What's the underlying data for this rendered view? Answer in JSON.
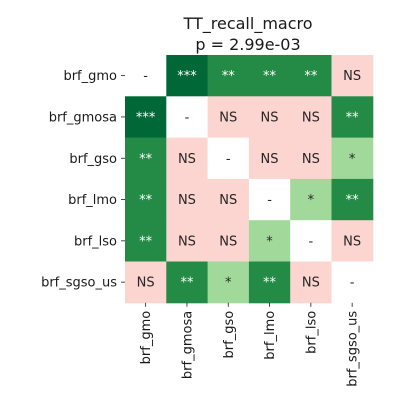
{
  "chart_data": {
    "type": "heatmap",
    "title": "TT_recall_macro",
    "subtitle": "p = 2.99e-03",
    "rows": [
      "brf_gmo",
      "brf_gmosa",
      "brf_gso",
      "brf_lmo",
      "brf_lso",
      "brf_sgso_us"
    ],
    "cols": [
      "brf_gmo",
      "brf_gmosa",
      "brf_gso",
      "brf_lmo",
      "brf_lso",
      "brf_sgso_us"
    ],
    "cells": [
      [
        "-",
        "***",
        "**",
        "**",
        "**",
        "NS"
      ],
      [
        "***",
        "-",
        "NS",
        "NS",
        "NS",
        "**"
      ],
      [
        "**",
        "NS",
        "-",
        "NS",
        "NS",
        "*"
      ],
      [
        "**",
        "NS",
        "NS",
        "-",
        "*",
        "**"
      ],
      [
        "**",
        "NS",
        "NS",
        "*",
        "-",
        "NS"
      ],
      [
        "NS",
        "**",
        "*",
        "**",
        "NS",
        "-"
      ]
    ],
    "level_colors": {
      "***": "#006837",
      "**": "#238b45",
      "*": "#a1d99b",
      "NS": "#fcd5d0",
      "-": "#ffffff"
    },
    "level_text_colors": {
      "***": "#ffffff",
      "**": "#ffffff",
      "*": "#262626",
      "NS": "#262626",
      "-": "#262626"
    },
    "grid": false,
    "legend": "none"
  }
}
